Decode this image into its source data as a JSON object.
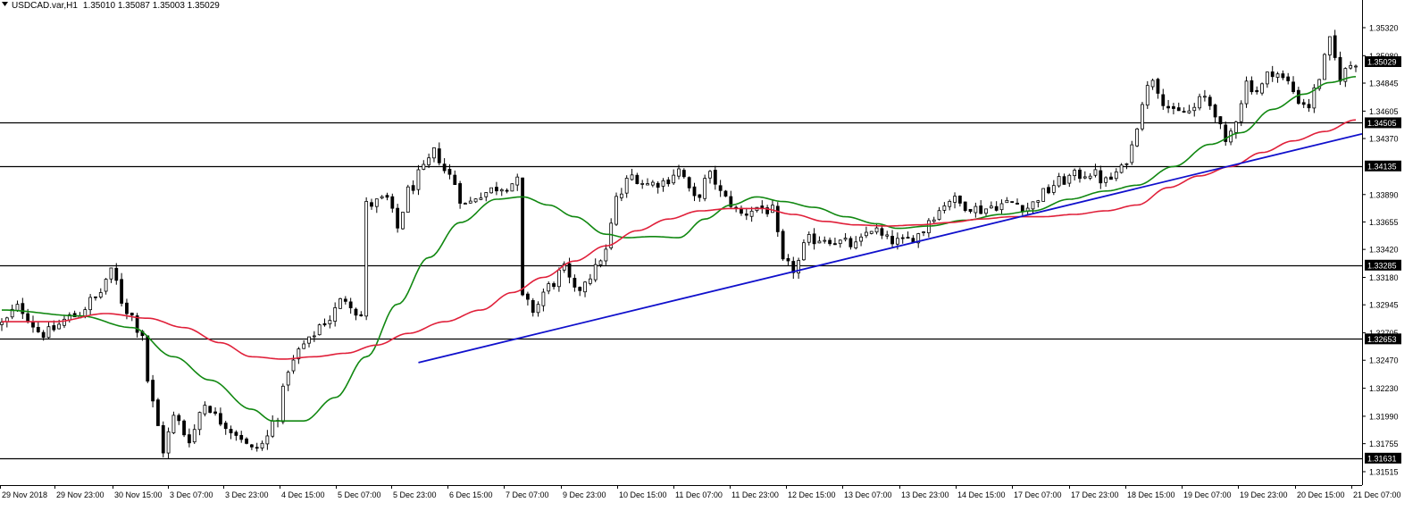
{
  "header": {
    "symbol": "USDCAD.var,H1",
    "ohlc": "1.35010 1.35087 1.35003 1.35029"
  },
  "colors": {
    "background": "#ffffff",
    "candle": "#000000",
    "ma_fast": "#118811",
    "ma_slow": "#e0203a",
    "trendline": "#1010cc",
    "level_line": "#000000",
    "price_tag_bg": "#000000",
    "price_tag_text": "#ffffff"
  },
  "chart_data": {
    "type": "candlestick",
    "ylim": [
      1.314,
      1.3545
    ],
    "n_bars": 260,
    "y_ticks": [
      "1.35320",
      "1.35080",
      "1.34845",
      "1.34605",
      "1.34370",
      "1.33890",
      "1.33655",
      "1.33420",
      "1.33180",
      "1.32945",
      "1.32705",
      "1.32470",
      "1.32230",
      "1.31990",
      "1.31755",
      "1.31515"
    ],
    "x_ticks": [
      "29 Nov 2018",
      "29 Nov 23:00",
      "30 Nov 15:00",
      "3 Dec 07:00",
      "3 Dec 23:00",
      "4 Dec 15:00",
      "5 Dec 07:00",
      "5 Dec 23:00",
      "6 Dec 15:00",
      "7 Dec 07:00",
      "9 Dec 23:00",
      "10 Dec 15:00",
      "11 Dec 07:00",
      "11 Dec 23:00",
      "12 Dec 15:00",
      "13 Dec 07:00",
      "13 Dec 23:00",
      "14 Dec 15:00",
      "17 Dec 07:00",
      "17 Dec 23:00",
      "18 Dec 15:00",
      "19 Dec 07:00",
      "19 Dec 23:00",
      "20 Dec 15:00",
      "21 Dec 07:00"
    ],
    "levels": [
      {
        "value": 1.34505,
        "label": "1.34505"
      },
      {
        "value": 1.34135,
        "label": "1.34135"
      },
      {
        "value": 1.33285,
        "label": "1.33285"
      },
      {
        "value": 1.32653,
        "label": "1.32653"
      },
      {
        "value": 1.31631,
        "label": "1.31631"
      }
    ],
    "current_price": {
      "value": 1.35029,
      "label": "1.35029"
    },
    "trendline": {
      "start": [
        80,
        1.3245
      ],
      "end": [
        260,
        1.3441
      ]
    },
    "close_anchors": [
      [
        0,
        1.3278
      ],
      [
        3,
        1.3292
      ],
      [
        8,
        1.327
      ],
      [
        14,
        1.3285
      ],
      [
        18,
        1.33
      ],
      [
        21,
        1.3322
      ],
      [
        24,
        1.329
      ],
      [
        27,
        1.327
      ],
      [
        28,
        1.323
      ],
      [
        30,
        1.319
      ],
      [
        31,
        1.317
      ],
      [
        33,
        1.3198
      ],
      [
        36,
        1.318
      ],
      [
        39,
        1.321
      ],
      [
        42,
        1.3195
      ],
      [
        45,
        1.3185
      ],
      [
        48,
        1.317
      ],
      [
        50,
        1.3175
      ],
      [
        53,
        1.32
      ],
      [
        55,
        1.324
      ],
      [
        58,
        1.326
      ],
      [
        62,
        1.328
      ],
      [
        66,
        1.33
      ],
      [
        69,
        1.3285
      ],
      [
        70,
        1.338
      ],
      [
        74,
        1.3385
      ],
      [
        76,
        1.336
      ],
      [
        78,
        1.3392
      ],
      [
        81,
        1.341
      ],
      [
        83,
        1.3425
      ],
      [
        86,
        1.3405
      ],
      [
        89,
        1.338
      ],
      [
        92,
        1.339
      ],
      [
        96,
        1.3396
      ],
      [
        99,
        1.34
      ],
      [
        100,
        1.33
      ],
      [
        102,
        1.329
      ],
      [
        105,
        1.331
      ],
      [
        108,
        1.3325
      ],
      [
        110,
        1.3305
      ],
      [
        113,
        1.332
      ],
      [
        116,
        1.334
      ],
      [
        118,
        1.3385
      ],
      [
        121,
        1.3405
      ],
      [
        124,
        1.3398
      ],
      [
        127,
        1.34
      ],
      [
        130,
        1.341
      ],
      [
        133,
        1.3385
      ],
      [
        136,
        1.3405
      ],
      [
        139,
        1.3385
      ],
      [
        142,
        1.3372
      ],
      [
        145,
        1.3378
      ],
      [
        148,
        1.3375
      ],
      [
        150,
        1.333
      ],
      [
        152,
        1.3325
      ],
      [
        155,
        1.335
      ],
      [
        158,
        1.3352
      ],
      [
        161,
        1.3348
      ],
      [
        164,
        1.3345
      ],
      [
        167,
        1.336
      ],
      [
        170,
        1.335
      ],
      [
        173,
        1.3348
      ],
      [
        176,
        1.3355
      ],
      [
        179,
        1.3372
      ],
      [
        182,
        1.3385
      ],
      [
        185,
        1.338
      ],
      [
        188,
        1.3376
      ],
      [
        191,
        1.338
      ],
      [
        194,
        1.3382
      ],
      [
        197,
        1.3378
      ],
      [
        200,
        1.339
      ],
      [
        203,
        1.34
      ],
      [
        206,
        1.3405
      ],
      [
        209,
        1.3408
      ],
      [
        212,
        1.34
      ],
      [
        215,
        1.341
      ],
      [
        217,
        1.343
      ],
      [
        219,
        1.347
      ],
      [
        221,
        1.349
      ],
      [
        223,
        1.347
      ],
      [
        225,
        1.3458
      ],
      [
        228,
        1.346
      ],
      [
        231,
        1.3472
      ],
      [
        233,
        1.346
      ],
      [
        235,
        1.343
      ],
      [
        237,
        1.3455
      ],
      [
        239,
        1.3485
      ],
      [
        241,
        1.3478
      ],
      [
        244,
        1.3495
      ],
      [
        247,
        1.3485
      ],
      [
        249,
        1.347
      ],
      [
        251,
        1.3465
      ],
      [
        253,
        1.349
      ],
      [
        255,
        1.352
      ],
      [
        257,
        1.349
      ],
      [
        259,
        1.35
      ],
      [
        260,
        1.3503
      ]
    ],
    "ma_fast_anchors": [
      [
        0,
        1.329
      ],
      [
        15,
        1.3285
      ],
      [
        25,
        1.3275
      ],
      [
        33,
        1.325
      ],
      [
        40,
        1.323
      ],
      [
        48,
        1.3205
      ],
      [
        52,
        1.3195
      ],
      [
        58,
        1.3195
      ],
      [
        64,
        1.3215
      ],
      [
        70,
        1.325
      ],
      [
        76,
        1.3295
      ],
      [
        82,
        1.3335
      ],
      [
        88,
        1.3365
      ],
      [
        95,
        1.3385
      ],
      [
        100,
        1.3387
      ],
      [
        105,
        1.338
      ],
      [
        110,
        1.337
      ],
      [
        116,
        1.3355
      ],
      [
        120,
        1.3352
      ],
      [
        125,
        1.3353
      ],
      [
        130,
        1.3352
      ],
      [
        135,
        1.3368
      ],
      [
        140,
        1.338
      ],
      [
        145,
        1.3387
      ],
      [
        150,
        1.3383
      ],
      [
        156,
        1.3378
      ],
      [
        162,
        1.337
      ],
      [
        168,
        1.3364
      ],
      [
        172,
        1.336
      ],
      [
        178,
        1.3362
      ],
      [
        185,
        1.3367
      ],
      [
        192,
        1.3372
      ],
      [
        198,
        1.3375
      ],
      [
        205,
        1.3385
      ],
      [
        212,
        1.3392
      ],
      [
        218,
        1.3397
      ],
      [
        225,
        1.3413
      ],
      [
        232,
        1.3432
      ],
      [
        238,
        1.3442
      ],
      [
        244,
        1.3462
      ],
      [
        250,
        1.3475
      ],
      [
        255,
        1.3485
      ],
      [
        260,
        1.349
      ]
    ],
    "ma_slow_anchors": [
      [
        0,
        1.328
      ],
      [
        10,
        1.328
      ],
      [
        20,
        1.3287
      ],
      [
        28,
        1.3283
      ],
      [
        35,
        1.3275
      ],
      [
        42,
        1.3262
      ],
      [
        48,
        1.325
      ],
      [
        54,
        1.3248
      ],
      [
        60,
        1.325
      ],
      [
        66,
        1.3253
      ],
      [
        72,
        1.326
      ],
      [
        78,
        1.327
      ],
      [
        85,
        1.328
      ],
      [
        92,
        1.329
      ],
      [
        98,
        1.3305
      ],
      [
        104,
        1.3318
      ],
      [
        110,
        1.3332
      ],
      [
        116,
        1.3345
      ],
      [
        122,
        1.3358
      ],
      [
        128,
        1.3368
      ],
      [
        134,
        1.3375
      ],
      [
        140,
        1.3377
      ],
      [
        146,
        1.3377
      ],
      [
        152,
        1.3372
      ],
      [
        158,
        1.3366
      ],
      [
        164,
        1.3363
      ],
      [
        170,
        1.3362
      ],
      [
        176,
        1.3363
      ],
      [
        182,
        1.3365
      ],
      [
        188,
        1.3368
      ],
      [
        194,
        1.337
      ],
      [
        200,
        1.337
      ],
      [
        206,
        1.3372
      ],
      [
        212,
        1.3375
      ],
      [
        218,
        1.338
      ],
      [
        224,
        1.3395
      ],
      [
        230,
        1.3405
      ],
      [
        236,
        1.3413
      ],
      [
        242,
        1.3425
      ],
      [
        248,
        1.3435
      ],
      [
        254,
        1.3443
      ],
      [
        260,
        1.3453
      ]
    ]
  }
}
